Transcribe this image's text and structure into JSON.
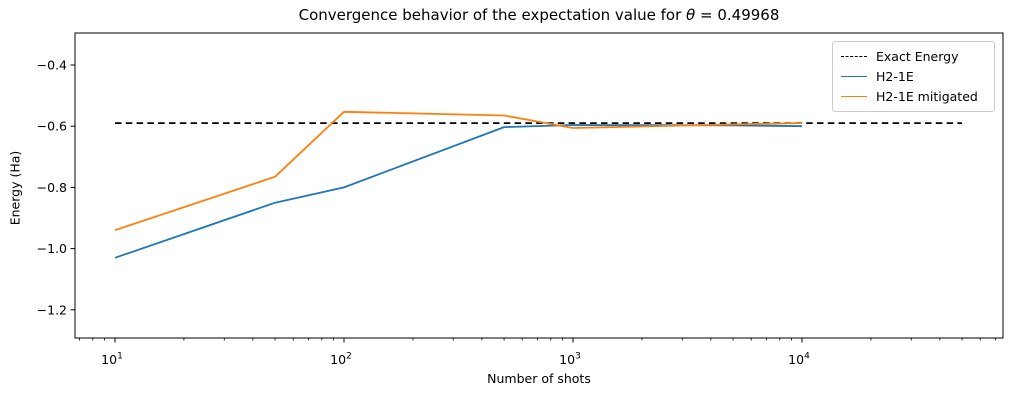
{
  "chart_data": {
    "type": "line",
    "title": "Convergence behavior of the expectation value for θ = 0.49968",
    "title_parts": {
      "prefix": "Convergence behavior of the expectation value for ",
      "theta": "θ",
      "suffix": " = 0.49968"
    },
    "xlabel": "Number of shots",
    "ylabel": "Energy (Ha)",
    "xscale": "log",
    "xlim": [
      6.6,
      76000
    ],
    "ylim": [
      -1.29,
      -0.3
    ],
    "grid": false,
    "x": [
      10,
      50,
      100,
      500,
      1000,
      5000,
      10000
    ],
    "series": [
      {
        "name": "H2-1E",
        "color": "#1f77b4",
        "style": "solid",
        "values": [
          -1.03,
          -0.85,
          -0.8,
          -0.603,
          -0.596,
          -0.597,
          -0.6
        ]
      },
      {
        "name": "H2-1E mitigated",
        "color": "#ff7f0e",
        "style": "solid",
        "values": [
          -0.94,
          -0.765,
          -0.553,
          -0.565,
          -0.606,
          -0.594,
          -0.59
        ]
      }
    ],
    "reference_line": {
      "name": "Exact Energy",
      "value": -0.59,
      "x_range": [
        10,
        50000
      ],
      "color": "#000000",
      "style": "dashed"
    },
    "x_ticks": [
      {
        "value": 10,
        "base": "10",
        "exp": "1"
      },
      {
        "value": 100,
        "base": "10",
        "exp": "2"
      },
      {
        "value": 1000,
        "base": "10",
        "exp": "3"
      },
      {
        "value": 10000,
        "base": "10",
        "exp": "4"
      }
    ],
    "y_ticks": [
      {
        "value": -0.4,
        "label": "−0.4"
      },
      {
        "value": -0.6,
        "label": "−0.6"
      },
      {
        "value": -0.8,
        "label": "−0.8"
      },
      {
        "value": -1.0,
        "label": "−1.0"
      },
      {
        "value": -1.2,
        "label": "−1.2"
      }
    ],
    "legend": {
      "position": "upper right",
      "items": [
        {
          "label": "Exact Energy",
          "color": "#000000",
          "dash": true
        },
        {
          "label": "H2-1E",
          "color": "#1f77b4",
          "dash": false
        },
        {
          "label": "H2-1E mitigated",
          "color": "#ff7f0e",
          "dash": false
        }
      ]
    }
  }
}
